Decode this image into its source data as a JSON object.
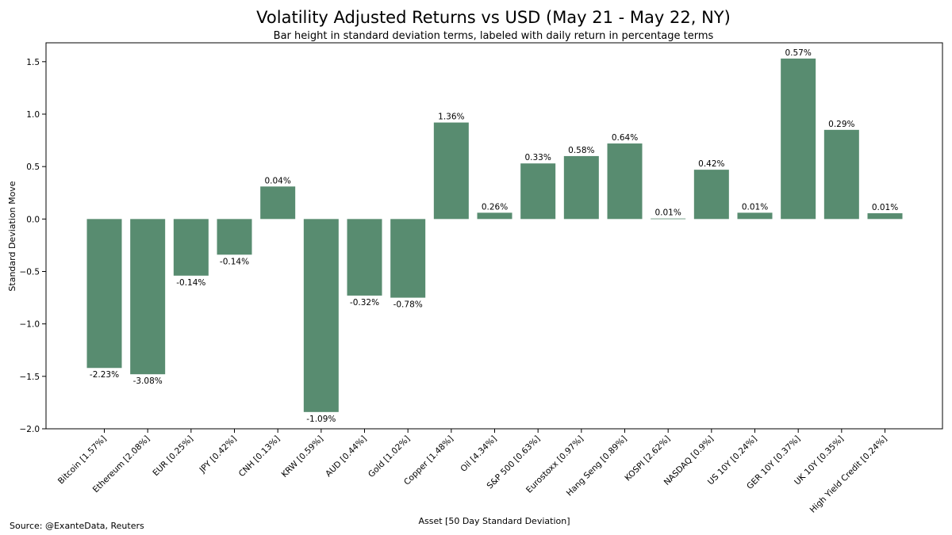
{
  "chart_data": {
    "type": "bar",
    "title": "Volatility Adjusted Returns vs USD (May 21 - May 22, NY)",
    "subtitle": "Bar height in standard deviation terms, labeled with daily return in percentage terms",
    "xlabel": "Asset [50 Day Standard Deviation]",
    "ylabel": "Standard Deviation Move",
    "ylim": [
      -2.0,
      1.68
    ],
    "yticks": [
      -2.0,
      -1.5,
      -1.0,
      -0.5,
      0.0,
      0.5,
      1.0,
      1.5
    ],
    "ytick_labels": [
      "−2.0",
      "−1.5",
      "−1.0",
      "−0.5",
      "0.0",
      "0.5",
      "1.0",
      "1.5"
    ],
    "grid": false,
    "bar_color": "#588c70",
    "categories": [
      "Bitcoin [1.57%]",
      "Ethereum [2.08%]",
      "EUR [0.25%]",
      "JPY [0.42%]",
      "CNH [0.13%]",
      "KRW [0.59%]",
      "AUD [0.44%]",
      "Gold [1.02%]",
      "Copper [1.48%]",
      "Oil [4.34%]",
      "S&P 500 [0.63%]",
      "Eurostoxx [0.97%]",
      "Hang Seng [0.89%]",
      "KOSPI [2.62%]",
      "NASDAQ [0.9%]",
      "US 10Y [0.24%]",
      "GER 10Y [0.37%]",
      "UK 10Y [0.35%]",
      "High Yield Credit [0.24%]"
    ],
    "values": [
      -1.42,
      -1.48,
      -0.54,
      -0.34,
      0.31,
      -1.84,
      -0.73,
      -0.75,
      0.92,
      0.06,
      0.53,
      0.6,
      0.72,
      0.005,
      0.47,
      0.06,
      1.53,
      0.85,
      0.055
    ],
    "data_labels": [
      "-2.23%",
      "-3.08%",
      "-0.14%",
      "-0.14%",
      "0.04%",
      "-1.09%",
      "-0.32%",
      "-0.78%",
      "1.36%",
      "0.26%",
      "0.33%",
      "0.58%",
      "0.64%",
      "0.01%",
      "0.42%",
      "0.01%",
      "0.57%",
      "0.29%",
      "0.01%"
    ]
  },
  "footer": {
    "source": "Source: @ExanteData, Reuters"
  }
}
